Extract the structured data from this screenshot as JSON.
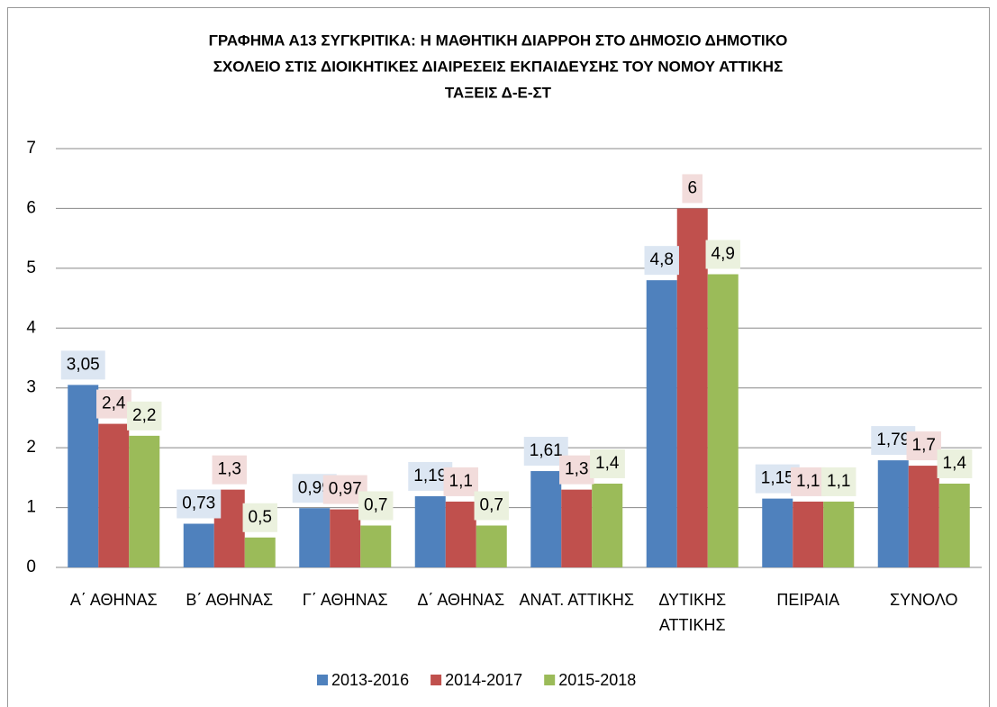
{
  "chart_data": {
    "type": "bar",
    "title": [
      "ΓΡΑΦΗΜΑ Α13 ΣΥΓΚΡΙΤΙΚΑ: Η ΜΑΘΗΤΙΚΗ ΔΙΑΡΡΟΗ ΣΤΟ ΔΗΜΟΣΙΟ ΔΗΜΟΤΙΚΟ",
      "ΣΧΟΛΕΙΟ ΣΤΙΣ ΔΙΟΙΚΗΤΙΚΕΣ ΔΙΑΙΡΕΣΕΙΣ ΕΚΠΑΙΔΕΥΣΗΣ ΤΟΥ ΝΟΜΟΥ ΑΤΤΙΚΗΣ",
      "ΤΑΞΕΙΣ Δ-Ε-ΣΤ"
    ],
    "categories": [
      "Α΄ ΑΘΗΝΑΣ",
      "Β΄ ΑΘΗΝΑΣ",
      "Γ΄ ΑΘΗΝΑΣ",
      "Δ΄ ΑΘΗΝΑΣ",
      "ΑΝΑΤ. ΑΤΤΙΚΗΣ",
      "ΔΥΤΙΚΗΣ ΑΤΤΙΚΗΣ",
      "ΠΕΙΡΑΙΑ",
      "ΣΥΝΟΛΟ"
    ],
    "series": [
      {
        "name": "2013-2016",
        "color": "#4f81bd",
        "label_bg": "#dce6f2",
        "values": [
          3.05,
          0.73,
          0.99,
          1.19,
          1.61,
          4.8,
          1.15,
          1.79
        ],
        "value_labels": [
          "3,05",
          "0,73",
          "0,99",
          "1,19",
          "1,61",
          "4,8",
          "1,15",
          "1,79"
        ]
      },
      {
        "name": "2014-2017",
        "color": "#c0504d",
        "label_bg": "#f2dcdb",
        "values": [
          2.4,
          1.3,
          0.97,
          1.1,
          1.3,
          6,
          1.1,
          1.7
        ],
        "value_labels": [
          "2,4",
          "1,3",
          "0,97",
          "1,1",
          "1,3",
          "6",
          "1,1",
          "1,7"
        ]
      },
      {
        "name": "2015-2018",
        "color": "#9bbb59",
        "label_bg": "#ebf1de",
        "values": [
          2.2,
          0.5,
          0.7,
          0.7,
          1.4,
          4.9,
          1.1,
          1.4
        ],
        "value_labels": [
          "2,2",
          "0,5",
          "0,7",
          "0,7",
          "1,4",
          "4,9",
          "1,1",
          "1,4"
        ]
      }
    ],
    "ylim": [
      0,
      7
    ],
    "yticks": [
      0,
      1,
      2,
      3,
      4,
      5,
      6,
      7
    ],
    "grid": true,
    "legend": "bottom"
  }
}
